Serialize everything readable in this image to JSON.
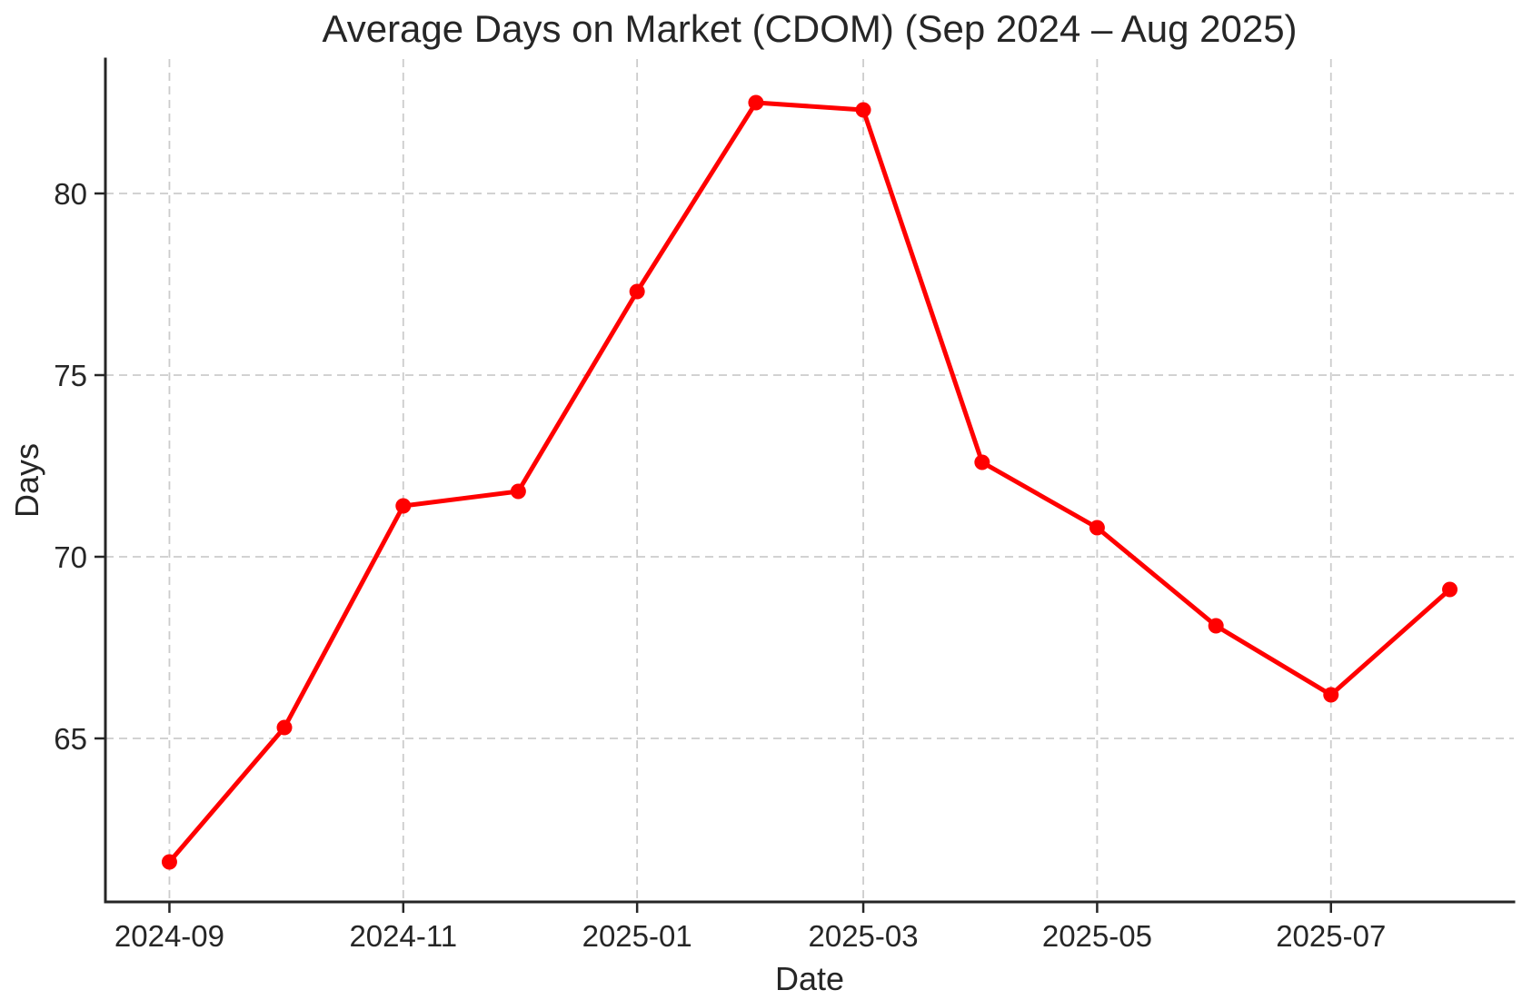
{
  "chart_data": {
    "type": "line",
    "title": "Average Days on Market (CDOM) (Sep 2024 – Aug 2025)",
    "xlabel": "Date",
    "ylabel": "Days",
    "x": [
      "2024-09",
      "2024-10",
      "2024-11",
      "2024-12",
      "2025-01",
      "2025-02",
      "2025-03",
      "2025-04",
      "2025-05",
      "2025-06",
      "2025-07",
      "2025-08"
    ],
    "series": [
      {
        "name": "Average Days on Market (CDOM)",
        "values": [
          61.6,
          65.3,
          71.4,
          71.8,
          77.3,
          82.5,
          82.3,
          72.6,
          70.8,
          68.1,
          66.2,
          69.1
        ]
      }
    ],
    "x_tick_labels": [
      "2024-09",
      "2024-11",
      "2025-01",
      "2025-03",
      "2025-05",
      "2025-07"
    ],
    "y_ticks": [
      65,
      70,
      75,
      80
    ],
    "ylim": [
      60.5,
      83.7
    ],
    "grid": true,
    "grid_style": "dashed",
    "legend": "none",
    "line_color": "#ff0000",
    "marker": "circle",
    "text_color": "#262626",
    "grid_color": "#cccccc",
    "background_color": "#ffffff"
  }
}
